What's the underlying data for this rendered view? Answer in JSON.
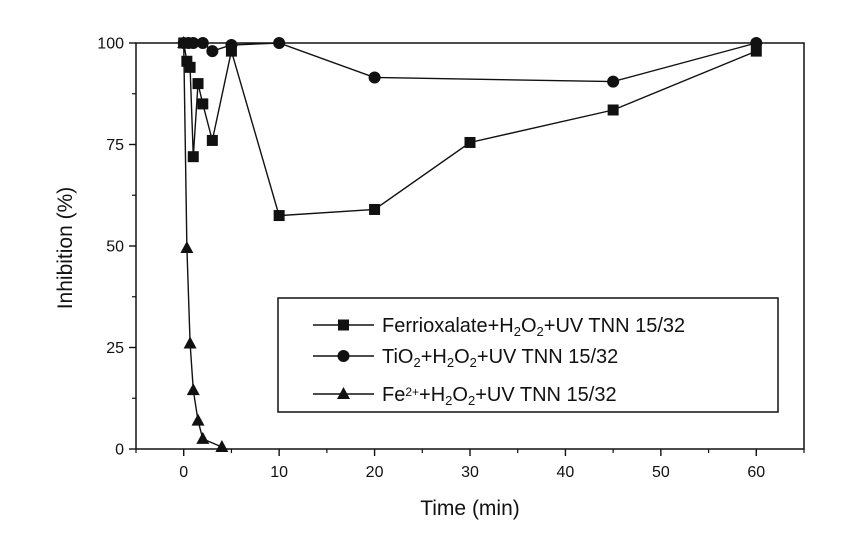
{
  "chart_data": {
    "type": "line",
    "xlabel": "Time (min)",
    "ylabel": "Inhibition (%)",
    "xlim": [
      -5,
      65
    ],
    "ylim": [
      0,
      100
    ],
    "xticks": [
      0,
      10,
      20,
      30,
      40,
      50,
      60
    ],
    "yticks": [
      0,
      25,
      50,
      75,
      100
    ],
    "grid": false,
    "legend_position": "bottom-right",
    "series": [
      {
        "name": "Ferrioxalate+H2O2+UV TNN 15/32",
        "marker": "square",
        "x": [
          0,
          0.33,
          0.67,
          1,
          1.5,
          2,
          3,
          5,
          10,
          20,
          30,
          45,
          60
        ],
        "y": [
          100,
          95.5,
          94,
          72,
          90,
          85,
          76,
          98,
          57.5,
          59,
          75.5,
          83.5,
          98
        ]
      },
      {
        "name": "TiO2+H2O2+UV TNN 15/32",
        "marker": "circle",
        "x": [
          0,
          0.5,
          1,
          2,
          3,
          5,
          10,
          20,
          45,
          60
        ],
        "y": [
          100,
          100,
          100,
          100,
          98,
          99.5,
          100,
          91.5,
          90.5,
          100
        ]
      },
      {
        "name": "Fe2++H2O2+UV TNN 15/32",
        "marker": "triangle",
        "x": [
          0,
          0.33,
          0.67,
          1,
          1.5,
          2,
          4
        ],
        "y": [
          100,
          49.5,
          26,
          14.5,
          7,
          2.5,
          0.5
        ]
      }
    ]
  }
}
